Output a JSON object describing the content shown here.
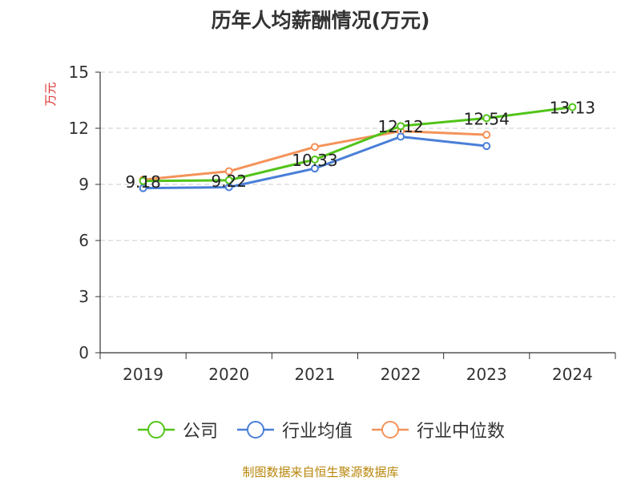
{
  "chart_data": {
    "type": "line",
    "title": "历年人均薪酬情况(万元)",
    "ylabel": "万元",
    "xlabel": "",
    "categories": [
      "2019",
      "2020",
      "2021",
      "2022",
      "2023",
      "2024"
    ],
    "ylim": [
      0,
      15
    ],
    "yticks": [
      0,
      3,
      6,
      9,
      12,
      15
    ],
    "grid": true,
    "legend_position": "bottom",
    "series": [
      {
        "name": "公司",
        "color": "#52c41a",
        "values": [
          9.18,
          9.22,
          10.33,
          12.12,
          12.54,
          13.13
        ],
        "show_labels": true
      },
      {
        "name": "行业均值",
        "color": "#4a7fd8",
        "values": [
          8.8,
          8.85,
          9.85,
          11.55,
          11.05,
          null
        ],
        "show_labels": false
      },
      {
        "name": "行业中位数",
        "color": "#f4935a",
        "values": [
          9.25,
          9.7,
          11.0,
          11.85,
          11.65,
          null
        ],
        "show_labels": false
      }
    ]
  },
  "source_text": "制图数据来自恒生聚源数据库",
  "colors": {
    "ylabel": "#e03030",
    "axis": "#333333",
    "grid": "#cccccc",
    "source": "#b8860b"
  }
}
